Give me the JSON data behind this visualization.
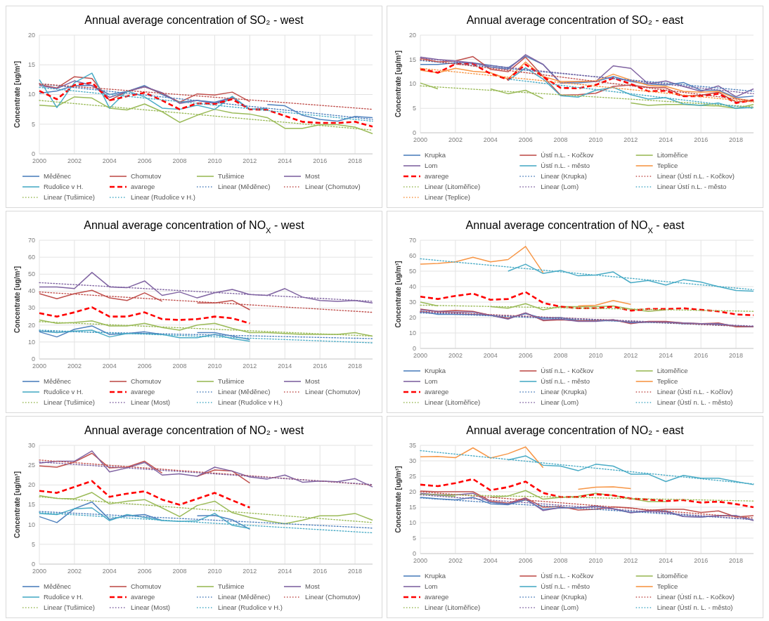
{
  "chart_data": [
    {
      "type": "line",
      "title": "Annual average concentration of SO₂ - west",
      "ylabel": "Concentrate [ug/m³]",
      "x": [
        2000,
        2001,
        2002,
        2003,
        2004,
        2005,
        2006,
        2007,
        2008,
        2009,
        2010,
        2011,
        2012,
        2013,
        2014,
        2015,
        2016,
        2017,
        2018,
        2019
      ],
      "xlim": [
        2000,
        2019
      ],
      "xticks": [
        2000,
        2002,
        2004,
        2006,
        2008,
        2010,
        2012,
        2014,
        2016,
        2018
      ],
      "ylim": [
        0,
        20
      ],
      "yticks": [
        0,
        5,
        10,
        15,
        20
      ],
      "grid": true,
      "legend": "bottom",
      "series": [
        {
          "name": "Měděnec",
          "color": "#4f81bd",
          "values": [
            10.2,
            10.6,
            11.5,
            11.5,
            10.0,
            10.5,
            11.5,
            10.0,
            8.7,
            9.0,
            8.7,
            9.5,
            null,
            8.3,
            8.1,
            6.5,
            5.8,
            5.5,
            6.3,
            6.1
          ]
        },
        {
          "name": "Chomutov",
          "color": "#c0504d",
          "values": [
            11.7,
            11.1,
            13.0,
            12.7,
            9.0,
            10.5,
            11.3,
            10.2,
            8.7,
            10.1,
            9.9,
            10.4,
            8.8,
            null,
            null,
            null,
            null,
            null,
            null,
            null
          ]
        },
        {
          "name": "Tušimice",
          "color": "#9bbb59",
          "values": [
            8.2,
            8.0,
            9.6,
            9.4,
            7.7,
            7.4,
            8.4,
            7.1,
            5.3,
            6.5,
            7.5,
            6.9,
            6.7,
            6.1,
            4.3,
            4.3,
            4.9,
            4.9,
            4.5,
            3.4
          ]
        },
        {
          "name": "Most",
          "color": "#8064a2",
          "values": [
            11.5,
            11.0,
            12.3,
            11.5,
            9.5,
            10.5,
            11.3,
            10.3,
            8.5,
            9.0,
            8.5,
            9.5,
            7.5,
            7.7,
            null,
            null,
            null,
            null,
            null,
            null
          ]
        },
        {
          "name": "Rudolice v H.",
          "color": "#4bacc6",
          "values": [
            12.5,
            7.8,
            12.0,
            13.6,
            7.7,
            10.6,
            9.6,
            7.7,
            7.5,
            8.2,
            7.5,
            9.7,
            7.5,
            7.6,
            null,
            null,
            null,
            null,
            null,
            null
          ]
        },
        {
          "name": "avarege",
          "color": "#ff0000",
          "line_style": "dashed",
          "values": [
            10.6,
            9.2,
            11.6,
            12.0,
            9.0,
            9.7,
            10.3,
            9.0,
            7.5,
            8.5,
            8.4,
            9.2,
            7.5,
            7.4,
            6.4,
            5.4,
            5.2,
            5.2,
            5.4,
            4.6
          ]
        },
        {
          "name": "Linear (Měděnec)",
          "color": "#4f81bd",
          "type": "line",
          "line_style": "dotted",
          "x": [
            2000,
            2019
          ],
          "values": [
            11.8,
            5.8
          ]
        },
        {
          "name": "Linear (Chomutov)",
          "color": "#c0504d",
          "type": "line",
          "line_style": "dotted",
          "x": [
            2000,
            2019
          ],
          "values": [
            11.8,
            7.5
          ]
        },
        {
          "name": "Linear (Tušimice)",
          "color": "#9bbb59",
          "type": "line",
          "line_style": "dotted",
          "x": [
            2000,
            2019
          ],
          "values": [
            9.0,
            4.0
          ]
        },
        {
          "name": "Linear (Rudolice v H.)",
          "color": "#4bacc6",
          "type": "line",
          "line_style": "dotted",
          "x": [
            2000,
            2019
          ],
          "values": [
            11.2,
            5.5
          ]
        }
      ]
    },
    {
      "type": "line",
      "title": "Annual average concentration of SO₂ - east",
      "ylabel": "Concentrate [ug/m³]",
      "x": [
        2000,
        2001,
        2002,
        2003,
        2004,
        2005,
        2006,
        2007,
        2008,
        2009,
        2010,
        2011,
        2012,
        2013,
        2014,
        2015,
        2016,
        2017,
        2018,
        2019
      ],
      "xlim": [
        2000,
        2019
      ],
      "xticks": [
        2000,
        2002,
        2004,
        2006,
        2008,
        2010,
        2012,
        2014,
        2016,
        2018
      ],
      "ylim": [
        0,
        20
      ],
      "yticks": [
        0,
        5,
        10,
        15,
        20
      ],
      "grid": true,
      "legend": "bottom",
      "series": [
        {
          "name": "Krupka",
          "color": "#4f81bd",
          "values": [
            14.0,
            14.0,
            14.3,
            14.3,
            13.8,
            13.3,
            15.7,
            14.0,
            10.2,
            10.2,
            10.5,
            11.5,
            10.5,
            10.0,
            9.8,
            10.3,
            8.7,
            8.7,
            7.2,
            7.5
          ]
        },
        {
          "name": "Ústí n.L. - Kočkov",
          "color": "#c0504d",
          "values": [
            15.3,
            14.5,
            14.7,
            15.6,
            13.0,
            12.5,
            15.5,
            11.5,
            7.7,
            7.8,
            8.1,
            9.5,
            9.8,
            9.3,
            9.2,
            7.5,
            7.7,
            8.3,
            6.3,
            6.5
          ]
        },
        {
          "name": "Litoměřice",
          "color": "#9bbb59",
          "values": [
            10.2,
            9.0,
            null,
            null,
            9.0,
            8.0,
            8.7,
            7.0,
            null,
            null,
            null,
            null,
            6.1,
            5.6,
            5.8,
            5.8,
            5.6,
            5.5,
            5.0,
            5.8
          ]
        },
        {
          "name": "Lom",
          "color": "#8064a2",
          "values": [
            15.5,
            15.0,
            14.7,
            14.3,
            13.5,
            13.0,
            16.0,
            14.0,
            10.2,
            10.5,
            10.5,
            13.7,
            13.2,
            10.0,
            10.6,
            9.5,
            8.5,
            9.6,
            7.4,
            9.0
          ]
        },
        {
          "name": "Ústí n.L. - město",
          "color": "#4bacc6",
          "values": [
            null,
            null,
            null,
            null,
            null,
            10.7,
            13.3,
            11.0,
            7.6,
            7.3,
            8.7,
            9.3,
            7.8,
            6.9,
            7.2,
            5.9,
            5.6,
            6.1,
            5.0,
            5.2
          ]
        },
        {
          "name": "Teplice",
          "color": "#f79646",
          "values": [
            12.8,
            12.3,
            13.2,
            12.6,
            12.3,
            11.0,
            14.5,
            11.5,
            10.5,
            10.5,
            10.6,
            12.0,
            10.8,
            9.7,
            9.5,
            8.5,
            8.3,
            8.5,
            7.0,
            6.5
          ]
        },
        {
          "name": "avarege",
          "color": "#ff0000",
          "line_style": "dashed",
          "values": [
            13.1,
            12.3,
            14.1,
            14.1,
            12.1,
            10.9,
            14.0,
            11.5,
            9.2,
            9.1,
            9.8,
            11.2,
            10.0,
            8.5,
            8.6,
            7.5,
            7.5,
            8.0,
            6.1,
            6.7
          ]
        },
        {
          "name": "Linear (Krupka)",
          "color": "#4f81bd",
          "type": "line",
          "line_style": "dotted",
          "x": [
            2000,
            2019
          ],
          "values": [
            14.8,
            8.5
          ]
        },
        {
          "name": "Linear (Ústí n.L. - Kočkov)",
          "color": "#c0504d",
          "type": "line",
          "line_style": "dotted",
          "x": [
            2000,
            2019
          ],
          "values": [
            15.0,
            6.5
          ]
        },
        {
          "name": "Linear (Litoměřice)",
          "color": "#9bbb59",
          "type": "line",
          "line_style": "dotted",
          "x": [
            2000,
            2019
          ],
          "values": [
            9.6,
            5.3
          ]
        },
        {
          "name": "Linear (Lom)",
          "color": "#8064a2",
          "type": "line",
          "line_style": "dotted",
          "x": [
            2000,
            2019
          ],
          "values": [
            15.3,
            8.0
          ]
        },
        {
          "name": "Linear Ústí n.L. - město",
          "color": "#4bacc6",
          "type": "line",
          "line_style": "dotted",
          "x": [
            2005,
            2019
          ],
          "values": [
            11.0,
            5.0
          ]
        },
        {
          "name": "Linear (Teplice)",
          "color": "#f79646",
          "type": "line",
          "line_style": "dotted",
          "x": [
            2000,
            2019
          ],
          "values": [
            13.2,
            6.3
          ]
        }
      ]
    },
    {
      "type": "line",
      "title": "Annual average concentration of NO$_{X}$ - west",
      "ylabel": "Concentrate [ug/m³]",
      "x": [
        2000,
        2001,
        2002,
        2003,
        2004,
        2005,
        2006,
        2007,
        2008,
        2009,
        2010,
        2011,
        2012,
        2013,
        2014,
        2015,
        2016,
        2017,
        2018,
        2019
      ],
      "xlim": [
        2000,
        2019
      ],
      "xticks": [
        2000,
        2002,
        2004,
        2006,
        2008,
        2010,
        2012,
        2014,
        2016,
        2018
      ],
      "ylim": [
        0,
        70
      ],
      "yticks": [
        0,
        10,
        20,
        30,
        40,
        50,
        60,
        70
      ],
      "grid": true,
      "legend": "bottom",
      "series": [
        {
          "name": "Měděnec",
          "color": "#4f81bd",
          "values": [
            16,
            13,
            17.5,
            19.5,
            14.5,
            15,
            16,
            14.5,
            null,
            15.5,
            15.5,
            13.5,
            11.5,
            null,
            null,
            null,
            null,
            null,
            null,
            null
          ]
        },
        {
          "name": "Chomutov",
          "color": "#c0504d",
          "values": [
            38.5,
            35.5,
            38.5,
            40.5,
            36,
            34.5,
            39,
            34,
            null,
            33,
            33,
            34.5,
            29,
            null,
            null,
            null,
            null,
            null,
            null,
            null
          ]
        },
        {
          "name": "Tušimice",
          "color": "#9bbb59",
          "values": [
            23,
            21,
            21.5,
            22.5,
            19.5,
            19.5,
            21,
            18.5,
            17,
            20,
            21,
            18,
            15.5,
            15.5,
            15,
            14.5,
            14.5,
            14.5,
            15.5,
            13.5
          ]
        },
        {
          "name": "Most",
          "color": "#8064a2",
          "values": [
            42.5,
            42.5,
            41.5,
            51,
            42.5,
            42,
            46,
            37.5,
            39.5,
            36,
            39,
            41,
            38,
            37.5,
            41.5,
            36.5,
            34.5,
            34,
            34.5,
            33
          ]
        },
        {
          "name": "Rudolice v H.",
          "color": "#4bacc6",
          "values": [
            16.5,
            15.5,
            16.5,
            17,
            13,
            15,
            15,
            14.5,
            12.5,
            12.5,
            14.5,
            12,
            10.5,
            null,
            null,
            null,
            null,
            null,
            null,
            null
          ]
        },
        {
          "name": "avarege",
          "color": "#ff0000",
          "line_style": "dashed",
          "values": [
            27,
            25,
            27.5,
            30.5,
            25,
            25,
            27.5,
            23.5,
            23,
            23.5,
            25,
            24,
            21,
            null,
            null,
            null,
            null,
            null,
            null,
            null
          ]
        },
        {
          "name": "Linear (Měděnec)",
          "color": "#4f81bd",
          "type": "line",
          "line_style": "dotted",
          "x": [
            2000,
            2019
          ],
          "values": [
            16.5,
            12
          ]
        },
        {
          "name": "Linear (Chomutov)",
          "color": "#c0504d",
          "type": "line",
          "line_style": "dotted",
          "x": [
            2000,
            2019
          ],
          "values": [
            39.5,
            27.5
          ]
        },
        {
          "name": "Linear (Tušimice)",
          "color": "#9bbb59",
          "type": "line",
          "line_style": "dotted",
          "x": [
            2000,
            2019
          ],
          "values": [
            22,
            13.5
          ]
        },
        {
          "name": "Linear (Most)",
          "color": "#8064a2",
          "type": "line",
          "line_style": "dotted",
          "x": [
            2000,
            2019
          ],
          "values": [
            45,
            34
          ]
        },
        {
          "name": "Linear (Rudolice v H.)",
          "color": "#4bacc6",
          "type": "line",
          "line_style": "dotted",
          "x": [
            2000,
            2019
          ],
          "values": [
            17,
            9.5
          ]
        }
      ]
    },
    {
      "type": "line",
      "title": "Annual average concentration of NO$_{X}$ - east",
      "ylabel": "Concentrate [ug/m³]",
      "x": [
        2000,
        2001,
        2002,
        2003,
        2004,
        2005,
        2006,
        2007,
        2008,
        2009,
        2010,
        2011,
        2012,
        2013,
        2014,
        2015,
        2016,
        2017,
        2018,
        2019
      ],
      "xlim": [
        2000,
        2019
      ],
      "xticks": [
        2000,
        2002,
        2004,
        2006,
        2008,
        2010,
        2012,
        2014,
        2016,
        2018
      ],
      "ylim": [
        0,
        70
      ],
      "yticks": [
        0,
        10,
        20,
        30,
        40,
        50,
        60,
        70
      ],
      "grid": true,
      "legend": "bottom",
      "series": [
        {
          "name": "Krupka",
          "color": "#4f81bd",
          "values": [
            24,
            22,
            22,
            22,
            21.5,
            19.5,
            22.5,
            19.5,
            20,
            18,
            18,
            18,
            17,
            17,
            17,
            16,
            16,
            15.5,
            14.5,
            14
          ]
        },
        {
          "name": "Ústí n.L. - Kočkov",
          "color": "#c0504d",
          "values": [
            25.5,
            24,
            24.5,
            24,
            21.5,
            19.5,
            23,
            18,
            18.5,
            18,
            18,
            18.5,
            16,
            17.5,
            17.5,
            16.5,
            16,
            16.5,
            14,
            14
          ]
        },
        {
          "name": "Litoměřice",
          "color": "#9bbb59",
          "values": [
            30,
            27.5,
            null,
            null,
            27,
            26,
            29,
            25,
            27,
            27,
            27,
            27.5,
            25.5,
            24,
            25,
            null,
            null,
            null,
            null,
            null
          ]
        },
        {
          "name": "Lom",
          "color": "#8064a2",
          "values": [
            25,
            24,
            23.5,
            23.5,
            21.5,
            19,
            23,
            18.5,
            19,
            17.5,
            17.5,
            18.5,
            16.5,
            17,
            17,
            16.5,
            16,
            16,
            14.5,
            14
          ]
        },
        {
          "name": "Ústí n.L. - město",
          "color": "#4bacc6",
          "values": [
            null,
            null,
            null,
            null,
            null,
            50,
            54.5,
            48.5,
            50.5,
            47,
            47.5,
            49.5,
            42.5,
            44,
            41,
            44.5,
            43,
            40,
            37.5,
            37
          ]
        },
        {
          "name": "Teplice",
          "color": "#f79646",
          "values": [
            54.5,
            55,
            56,
            59,
            56,
            57.5,
            66,
            49,
            null,
            27.5,
            28,
            31,
            28.5,
            null,
            null,
            null,
            null,
            null,
            null,
            null
          ]
        },
        {
          "name": "avarege",
          "color": "#ff0000",
          "line_style": "dashed",
          "values": [
            33.5,
            32,
            34,
            35.5,
            31.5,
            32,
            36.5,
            29.5,
            27,
            26,
            26,
            27,
            24.5,
            25.5,
            25.5,
            26,
            25,
            24,
            22,
            21.5
          ]
        },
        {
          "name": "Linear (Krupka)",
          "color": "#4f81bd",
          "type": "line",
          "line_style": "dotted",
          "x": [
            2000,
            2019
          ],
          "values": [
            23,
            14
          ]
        },
        {
          "name": "Linear (Ústí n.L. - Kočlov)",
          "color": "#c0504d",
          "type": "line",
          "line_style": "dotted",
          "x": [
            2000,
            2019
          ],
          "values": [
            24,
            14
          ]
        },
        {
          "name": "Linear (Litoměřice)",
          "color": "#9bbb59",
          "type": "line",
          "line_style": "dotted",
          "x": [
            2000,
            2019
          ],
          "values": [
            28,
            24
          ]
        },
        {
          "name": "Linear (Lom)",
          "color": "#8064a2",
          "type": "line",
          "line_style": "dotted",
          "x": [
            2000,
            2019
          ],
          "values": [
            23.5,
            14.5
          ]
        },
        {
          "name": "Linear (Ústí n. L. - město)",
          "color": "#4bacc6",
          "type": "line",
          "line_style": "dotted",
          "x": [
            2000,
            2019
          ],
          "values": [
            58,
            38
          ]
        }
      ]
    },
    {
      "type": "line",
      "title": "Annual average concentration of NO₂ - west",
      "ylabel": "Concentrate [ug/m³]",
      "x": [
        2000,
        2001,
        2002,
        2003,
        2004,
        2005,
        2006,
        2007,
        2008,
        2009,
        2010,
        2011,
        2012,
        2013,
        2014,
        2015,
        2016,
        2017,
        2018,
        2019
      ],
      "xlim": [
        2000,
        2019
      ],
      "xticks": [
        2000,
        2002,
        2004,
        2006,
        2008,
        2010,
        2012,
        2014,
        2016,
        2018
      ],
      "ylim": [
        0,
        30
      ],
      "yticks": [
        0,
        5,
        10,
        15,
        20,
        25,
        30
      ],
      "grid": true,
      "legend": "bottom",
      "series": [
        {
          "name": "Měděnec",
          "color": "#4f81bd",
          "values": [
            12,
            10.5,
            14,
            15.7,
            11.3,
            12.2,
            12.5,
            11,
            null,
            12.2,
            12.3,
            11.2,
            8.8,
            null,
            null,
            null,
            null,
            null,
            null,
            null
          ]
        },
        {
          "name": "Chomutov",
          "color": "#c0504d",
          "values": [
            24.8,
            24.5,
            25.8,
            28,
            24.3,
            24.5,
            26,
            23,
            null,
            22.2,
            23.8,
            23.5,
            20.5,
            null,
            null,
            null,
            null,
            null,
            null,
            null
          ]
        },
        {
          "name": "Tušimice",
          "color": "#9bbb59",
          "values": [
            17.3,
            16.6,
            16.5,
            18.1,
            15.2,
            15.9,
            16.3,
            14.2,
            12,
            14.8,
            15.9,
            13,
            11.8,
            10.9,
            10.2,
            11.1,
            12.2,
            12.2,
            12.8,
            11.1
          ]
        },
        {
          "name": "Most",
          "color": "#8064a2",
          "values": [
            25.5,
            26,
            26,
            28.6,
            23.3,
            24.3,
            25.7,
            22.5,
            22.8,
            22.2,
            24.5,
            23.5,
            22,
            21.5,
            22.5,
            20.7,
            21,
            20.8,
            21.6,
            19.5
          ]
        },
        {
          "name": "Rudolice v H.",
          "color": "#4bacc6",
          "values": [
            12.8,
            12.5,
            14,
            14.2,
            11,
            12.5,
            11.8,
            11,
            10.8,
            10.9,
            12.8,
            9.8,
            9,
            null,
            null,
            null,
            null,
            null,
            null,
            null
          ]
        },
        {
          "name": "avarege",
          "color": "#ff0000",
          "line_style": "dashed",
          "values": [
            18.5,
            18,
            19.5,
            21,
            17,
            17.8,
            18.4,
            16.3,
            15,
            16.5,
            18,
            16.1,
            14.3,
            null,
            null,
            null,
            null,
            null,
            null,
            null
          ]
        },
        {
          "name": "Linear (Měděnec)",
          "color": "#4f81bd",
          "type": "line",
          "line_style": "dotted",
          "x": [
            2000,
            2019
          ],
          "values": [
            13.3,
            9.1
          ]
        },
        {
          "name": "Linear (Chomutov)",
          "color": "#c0504d",
          "type": "line",
          "line_style": "dotted",
          "x": [
            2000,
            2019
          ],
          "values": [
            26.3,
            20
          ]
        },
        {
          "name": "Linear (Tušimice)",
          "color": "#9bbb59",
          "type": "line",
          "line_style": "dotted",
          "x": [
            2000,
            2019
          ],
          "values": [
            17,
            10.5
          ]
        },
        {
          "name": "Linear (Most)",
          "color": "#8064a2",
          "type": "line",
          "line_style": "dotted",
          "x": [
            2000,
            2019
          ],
          "values": [
            25.8,
            20.1
          ]
        },
        {
          "name": "Linear (Rudolice v H.)",
          "color": "#4bacc6",
          "type": "line",
          "line_style": "dotted",
          "x": [
            2000,
            2019
          ],
          "values": [
            13,
            7.9
          ]
        }
      ]
    },
    {
      "type": "line",
      "title": "Annual average concentration of NO₂ - east",
      "ylabel": "Concentrate [ug/m³]",
      "x": [
        2000,
        2001,
        2002,
        2003,
        2004,
        2005,
        2006,
        2007,
        2008,
        2009,
        2010,
        2011,
        2012,
        2013,
        2014,
        2015,
        2016,
        2017,
        2018,
        2019
      ],
      "xlim": [
        2000,
        2019
      ],
      "xticks": [
        2000,
        2002,
        2004,
        2006,
        2008,
        2010,
        2012,
        2014,
        2016,
        2018
      ],
      "ylim": [
        0,
        35
      ],
      "yticks": [
        0,
        5,
        10,
        15,
        20,
        25,
        30,
        35
      ],
      "grid": true,
      "legend": "bottom",
      "series": [
        {
          "name": "Krupka",
          "color": "#4f81bd",
          "values": [
            18.2,
            17.7,
            17.4,
            18.2,
            16.1,
            15.8,
            17.4,
            14.3,
            14.8,
            14.8,
            15.3,
            14.5,
            13.3,
            13.8,
            13.8,
            12,
            11.8,
            12.2,
            12.2,
            10.8
          ]
        },
        {
          "name": "Ústí n.L. - Kočkov",
          "color": "#c0504d",
          "values": [
            20.2,
            20,
            20,
            20,
            17,
            16.3,
            18,
            15,
            15.2,
            14.1,
            14.3,
            15.1,
            14.8,
            14,
            14.3,
            14.3,
            13.3,
            13.8,
            11.8,
            12.3
          ]
        },
        {
          "name": "Litoměřice",
          "color": "#9bbb59",
          "values": [
            19.4,
            18.9,
            18.5,
            null,
            18.3,
            18.6,
            20.4,
            17.6,
            18.2,
            18.5,
            19.5,
            18.8,
            17.8,
            16.8,
            16.8,
            null,
            null,
            null,
            null,
            null
          ]
        },
        {
          "name": "Lom",
          "color": "#8064a2",
          "values": [
            19.5,
            19,
            19,
            19.5,
            16.6,
            16,
            17.8,
            13.9,
            14.9,
            14.7,
            15.4,
            14.5,
            13.2,
            13.8,
            13.5,
            12,
            11.8,
            12.3,
            12.3,
            10.7
          ]
        },
        {
          "name": "Ústí n.L. - město",
          "color": "#4bacc6",
          "values": [
            null,
            null,
            null,
            null,
            null,
            30.3,
            31.6,
            28.6,
            28.3,
            26.8,
            28.9,
            28.3,
            25.7,
            25.7,
            23.3,
            25.3,
            24.4,
            24.4,
            23.3,
            22.3
          ]
        },
        {
          "name": "Teplice",
          "color": "#f79646",
          "values": [
            31.3,
            31.4,
            31,
            34.2,
            30.9,
            32.3,
            34.5,
            27.8,
            null,
            20.8,
            21.5,
            21.6,
            21,
            null,
            null,
            null,
            null,
            null,
            null,
            null
          ]
        },
        {
          "name": "avarege",
          "color": "#ff0000",
          "line_style": "dashed",
          "values": [
            22.3,
            21.8,
            22.8,
            24.1,
            20.5,
            21.5,
            23.3,
            19.6,
            18.3,
            18.3,
            19.2,
            18.8,
            17.8,
            17.5,
            17,
            17.3,
            16.5,
            16.8,
            16,
            15
          ]
        },
        {
          "name": "Linear (Krupka)",
          "color": "#4f81bd",
          "type": "line",
          "line_style": "dotted",
          "x": [
            2000,
            2019
          ],
          "values": [
            18,
            11
          ]
        },
        {
          "name": "Linear (Ústí n.L. - Kočkov)",
          "color": "#c0504d",
          "type": "line",
          "line_style": "dotted",
          "x": [
            2000,
            2019
          ],
          "values": [
            20,
            11.5
          ]
        },
        {
          "name": "Linear (Litoměřice)",
          "color": "#9bbb59",
          "type": "line",
          "line_style": "dotted",
          "x": [
            2000,
            2019
          ],
          "values": [
            19.2,
            17
          ]
        },
        {
          "name": "Linear (Lom)",
          "color": "#8064a2",
          "type": "line",
          "line_style": "dotted",
          "x": [
            2000,
            2019
          ],
          "values": [
            19,
            11
          ]
        },
        {
          "name": "Linear (Ústí n. L. - město)",
          "color": "#4bacc6",
          "type": "line",
          "line_style": "dotted",
          "x": [
            2000,
            2019
          ],
          "values": [
            33.3,
            22.5
          ]
        }
      ]
    }
  ]
}
